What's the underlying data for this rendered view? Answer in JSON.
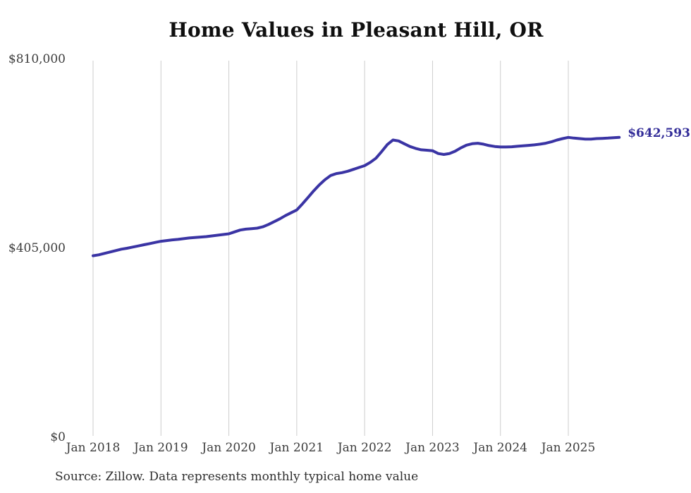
{
  "page": {
    "background": "#ffffff"
  },
  "header": {
    "title": "Home Values in Pleasant Hill, OR"
  },
  "footer": {
    "source_note": "Source: Zillow. Data represents monthly typical home value"
  },
  "colors": {
    "line": "#3a34a4",
    "end_label": "#322c98",
    "grid": "#cdcdcd",
    "tick_text": "#3c3c3c",
    "title_text": "#0f0f0f",
    "source_text": "#2e2e2e",
    "background": "#ffffff"
  },
  "chart_data": {
    "type": "line",
    "title": "Home Values in Pleasant Hill, OR",
    "xlabel": "",
    "ylabel": "",
    "x_unit": "month",
    "x_start": "2018-01",
    "x_end": "2025-10",
    "ylim": [
      0,
      810000
    ],
    "grid": "vertical-only",
    "legend_position": "none",
    "x_tick_labels": [
      "Jan 2018",
      "Jan 2019",
      "Jan 2020",
      "Jan 2021",
      "Jan 2022",
      "Jan 2023",
      "Jan 2024",
      "Jan 2025"
    ],
    "y_ticks": [
      {
        "label": "$0",
        "value": 0
      },
      {
        "label": "$405,000",
        "value": 405000
      },
      {
        "label": "$810,000",
        "value": 810000
      }
    ],
    "series": [
      {
        "name": "Monthly typical home value",
        "values": [
          389000,
          391000,
          394000,
          397000,
          400000,
          403000,
          405000,
          407500,
          410000,
          412500,
          415000,
          417500,
          420000,
          421500,
          423000,
          424000,
          425500,
          427000,
          428000,
          429000,
          430000,
          431500,
          433000,
          434500,
          436000,
          440000,
          444000,
          446000,
          447000,
          448000,
          451000,
          456000,
          462000,
          468000,
          475000,
          481000,
          487000,
          500000,
          514000,
          528000,
          541000,
          552000,
          561000,
          565000,
          567000,
          570000,
          574000,
          578000,
          582000,
          589000,
          598000,
          612000,
          627000,
          637000,
          635000,
          629000,
          623000,
          619000,
          616000,
          615000,
          614000,
          608000,
          606000,
          608000,
          613000,
          620000,
          626000,
          629000,
          630000,
          628000,
          625000,
          623000,
          622000,
          622000,
          622500,
          623500,
          624500,
          625500,
          626500,
          628000,
          630000,
          633000,
          637000,
          640000,
          642500,
          641000,
          640000,
          639000,
          639000,
          640000,
          640500,
          641000,
          642000,
          642593
        ]
      }
    ],
    "end_label": {
      "text": "$642,593",
      "value": 642593
    }
  }
}
